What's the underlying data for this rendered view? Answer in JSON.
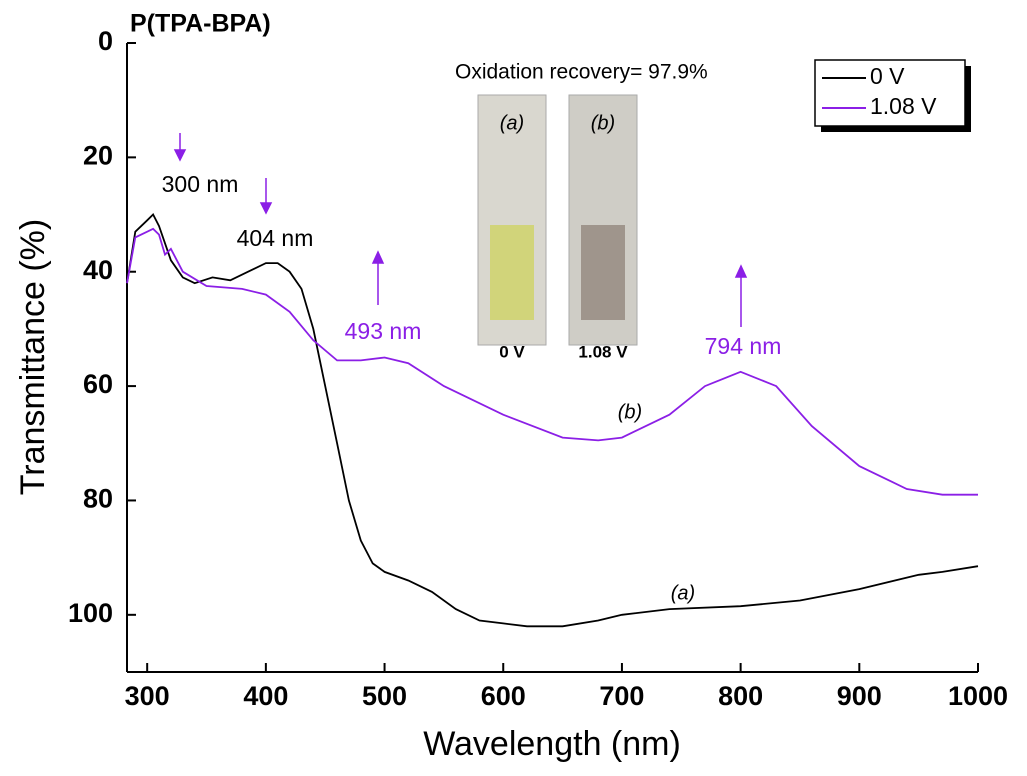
{
  "chart_data": {
    "type": "line",
    "title": "P(TPA-BPA)",
    "x_label": "Wavelength (nm)",
    "y_label": "Transmittance (%)",
    "xlim": [
      283,
      1000
    ],
    "ylim": [
      0,
      110
    ],
    "y_inverted": true,
    "xticks": [
      300,
      400,
      500,
      600,
      700,
      800,
      900,
      1000
    ],
    "yticks": [
      0,
      20,
      40,
      60,
      80,
      100
    ],
    "series": [
      {
        "name": "0 V",
        "color": "#000000",
        "x": [
          283,
          290,
          300,
          305,
          310,
          320,
          330,
          340,
          355,
          370,
          385,
          400,
          410,
          420,
          430,
          440,
          450,
          460,
          470,
          480,
          490,
          500,
          520,
          540,
          560,
          580,
          600,
          620,
          650,
          680,
          700,
          740,
          800,
          850,
          900,
          930,
          950,
          970,
          1000
        ],
        "values": [
          42,
          33,
          31,
          30,
          32,
          38,
          41,
          42,
          41,
          41.5,
          40,
          38.5,
          38.5,
          40,
          43,
          50,
          60,
          70,
          80,
          87,
          91,
          92.5,
          94,
          96,
          99,
          101,
          101.5,
          102,
          102,
          101,
          100,
          99,
          98.5,
          97.5,
          95.5,
          94,
          93,
          92.5,
          91.5
        ]
      },
      {
        "name": "1.08 V",
        "color": "#8b1fe6",
        "x": [
          283,
          290,
          300,
          305,
          310,
          315,
          320,
          330,
          350,
          380,
          400,
          420,
          440,
          460,
          480,
          500,
          520,
          550,
          600,
          650,
          680,
          700,
          740,
          770,
          800,
          830,
          860,
          900,
          940,
          970,
          1000
        ],
        "values": [
          42,
          34,
          33,
          32.5,
          33.5,
          37,
          36,
          40,
          42.5,
          43,
          44,
          47,
          52,
          55.5,
          55.5,
          55,
          56,
          60,
          65,
          69,
          69.5,
          69,
          65,
          60,
          57.5,
          60,
          67,
          74,
          78,
          79,
          79
        ]
      }
    ],
    "annotations": [
      "300 nm",
      "404 nm",
      "493 nm",
      "794 nm",
      "(a)",
      "(b)",
      "Oxidation recovery= 97.9%"
    ],
    "photo_labels": [
      "(a)",
      "(b)"
    ],
    "photo_captions": [
      "0 V",
      "1.08 V"
    ]
  }
}
